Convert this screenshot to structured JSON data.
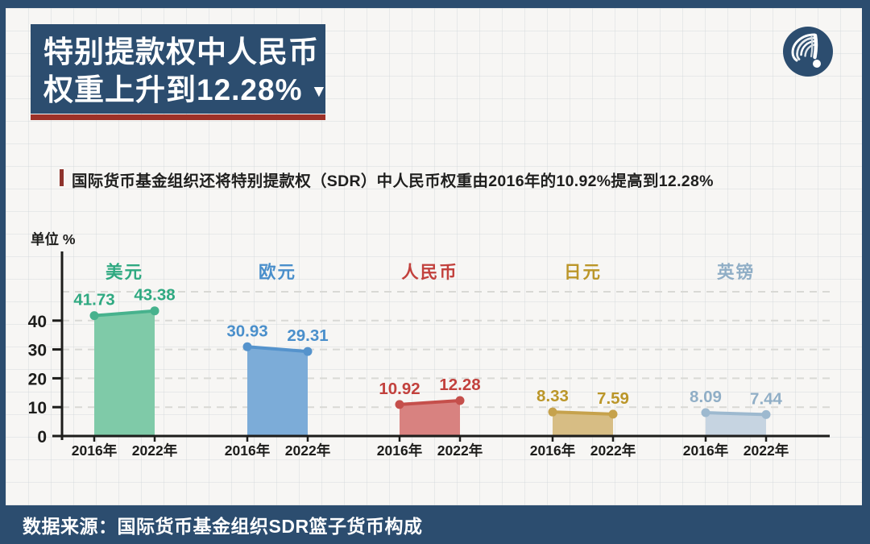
{
  "theme": {
    "navy": "#2c4d6f",
    "accent_red": "#9d3128",
    "subtitle_bar_red": "#8e332c",
    "panel_bg": "#f7f6f4",
    "axis_color": "#1d1d1b",
    "grid_color": "#d9d9d5"
  },
  "header": {
    "title_line1": "特别提款权中人民币",
    "title_line2": "权重上升到12.28%",
    "title_arrow": "▼",
    "logo_icon": "news-agency-logo"
  },
  "subtitle": {
    "text": "国际货币基金组织还将特别提款权（SDR）中人民币权重由2016年的10.92%提高到12.28%"
  },
  "chart_data": {
    "type": "area",
    "unit_label": "单位 %",
    "x_categories": [
      "2016年",
      "2022年"
    ],
    "yticks": [
      0,
      10,
      20,
      30,
      40
    ],
    "grid_values": [
      10,
      20,
      30,
      40,
      50
    ],
    "ylim": [
      0,
      55
    ],
    "grid_on": true,
    "series": [
      {
        "id": "usd",
        "name": "美元",
        "values": [
          41.73,
          43.38
        ],
        "fill": "#7fcaa8",
        "stroke": "#47b28d",
        "label_color": "#2fa981"
      },
      {
        "id": "eur",
        "name": "欧元",
        "values": [
          30.93,
          29.31
        ],
        "fill": "#7cacd8",
        "stroke": "#5593cc",
        "label_color": "#4a8fcb"
      },
      {
        "id": "cny",
        "name": "人民币",
        "values": [
          10.92,
          12.28
        ],
        "fill": "#d88280",
        "stroke": "#c54f4b",
        "label_color": "#c2413d"
      },
      {
        "id": "jpy",
        "name": "日元",
        "values": [
          8.33,
          7.59
        ],
        "fill": "#d7bd84",
        "stroke": "#c6a24c",
        "label_color": "#bb9629"
      },
      {
        "id": "gbp",
        "name": "英镑",
        "values": [
          8.09,
          7.44
        ],
        "fill": "#c6d4e1",
        "stroke": "#9db9cf",
        "label_color": "#90aec6"
      }
    ]
  },
  "footer": {
    "text": "数据来源：国际货币基金组织SDR篮子货币构成"
  }
}
